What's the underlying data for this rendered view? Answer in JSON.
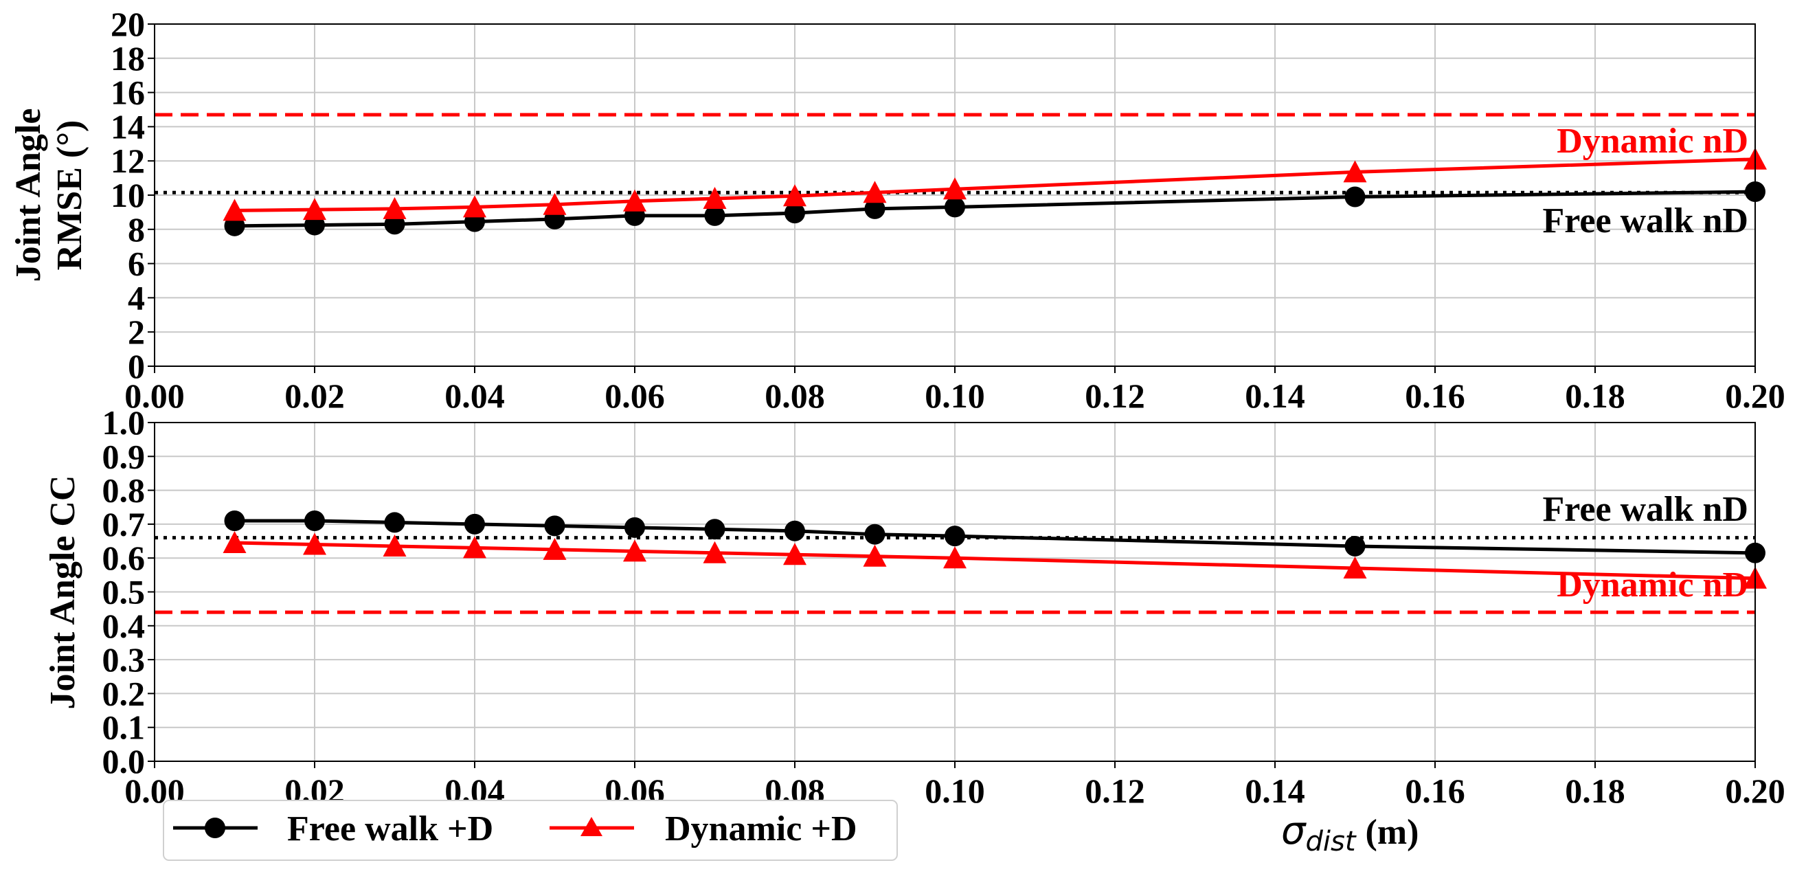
{
  "chart_data": {
    "type": "line",
    "x": [
      0.01,
      0.02,
      0.03,
      0.04,
      0.05,
      0.06,
      0.07,
      0.08,
      0.09,
      0.1,
      0.15,
      0.2
    ],
    "xlim": [
      0.0,
      0.2
    ],
    "x_ticks": [
      "0.00",
      "0.02",
      "0.04",
      "0.06",
      "0.08",
      "0.10",
      "0.12",
      "0.14",
      "0.16",
      "0.18",
      "0.20"
    ],
    "xlabel_symbol": "σ",
    "xlabel_sub": "dist",
    "xlabel_unit": "(m)",
    "legend": {
      "position": "bottom-left",
      "entries": [
        {
          "label": "Free walk +D",
          "color": "#000000",
          "marker": "circle"
        },
        {
          "label": "Dynamic +D",
          "color": "#ff0000",
          "marker": "triangle"
        }
      ]
    },
    "panels": [
      {
        "ylabel_line1": "Joint Angle",
        "ylabel_line2": "RMSE (°)",
        "ylim": [
          0,
          20
        ],
        "y_ticks": [
          "0",
          "2",
          "4",
          "6",
          "8",
          "10",
          "12",
          "14",
          "16",
          "18",
          "20"
        ],
        "grid": true,
        "series": [
          {
            "name": "Free walk +D",
            "color": "#000000",
            "marker": "circle",
            "values": [
              8.2,
              8.25,
              8.3,
              8.45,
              8.6,
              8.8,
              8.8,
              8.95,
              9.2,
              9.3,
              9.9,
              10.2
            ]
          },
          {
            "name": "Dynamic +D",
            "color": "#ff0000",
            "marker": "triangle",
            "values": [
              9.1,
              9.15,
              9.2,
              9.3,
              9.45,
              9.65,
              9.8,
              9.95,
              10.15,
              10.35,
              11.35,
              12.1
            ]
          }
        ],
        "reference_lines": [
          {
            "name": "Free walk nD",
            "value": 10.15,
            "style": "dotted",
            "color": "#000000"
          },
          {
            "name": "Dynamic nD",
            "value": 14.7,
            "style": "dashed",
            "color": "#ff0000"
          }
        ],
        "annotations": [
          {
            "text": "Dynamic nD",
            "color": "#ff0000"
          },
          {
            "text": "Free walk nD",
            "color": "#000000"
          }
        ]
      },
      {
        "ylabel_line1": "Joint Angle CC",
        "ylim": [
          0.0,
          1.0
        ],
        "y_ticks": [
          "0.0",
          "0.1",
          "0.2",
          "0.3",
          "0.4",
          "0.5",
          "0.6",
          "0.7",
          "0.8",
          "0.9",
          "1.0"
        ],
        "grid": true,
        "series": [
          {
            "name": "Free walk +D",
            "color": "#000000",
            "marker": "circle",
            "values": [
              0.71,
              0.71,
              0.705,
              0.7,
              0.695,
              0.69,
              0.685,
              0.68,
              0.67,
              0.665,
              0.635,
              0.615
            ]
          },
          {
            "name": "Dynamic +D",
            "color": "#ff0000",
            "marker": "triangle",
            "values": [
              0.645,
              0.64,
              0.635,
              0.63,
              0.625,
              0.62,
              0.615,
              0.61,
              0.605,
              0.6,
              0.57,
              0.54
            ]
          }
        ],
        "reference_lines": [
          {
            "name": "Free walk nD",
            "value": 0.66,
            "style": "dotted",
            "color": "#000000"
          },
          {
            "name": "Dynamic nD",
            "value": 0.44,
            "style": "dashed",
            "color": "#ff0000"
          }
        ],
        "annotations": [
          {
            "text": "Free walk nD",
            "color": "#000000"
          },
          {
            "text": "Dynamic nD",
            "color": "#ff0000"
          }
        ]
      }
    ]
  }
}
